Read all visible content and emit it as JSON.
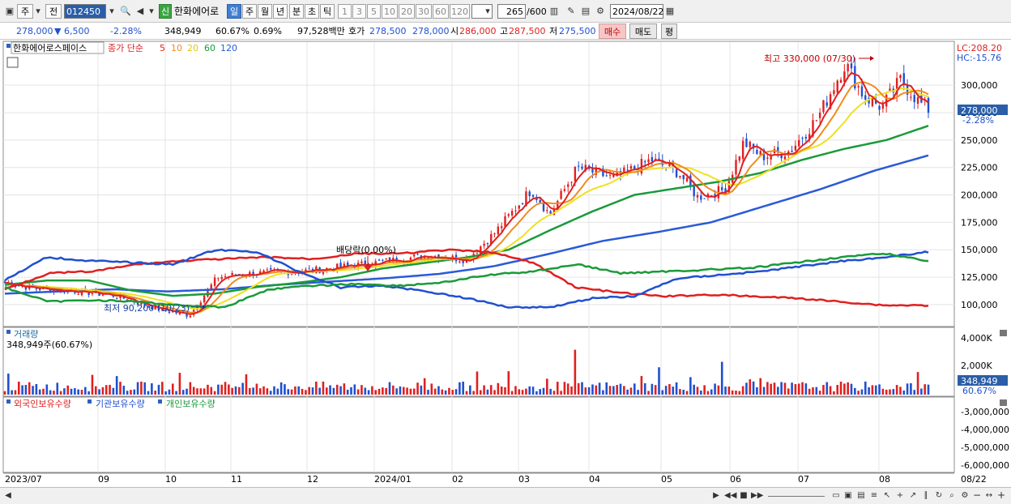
{
  "toolbar": {
    "mode_primary": "주",
    "mode_secondary": "전",
    "code": "012450",
    "shin": "신",
    "stock_name": "한화에어로",
    "periods": [
      "일",
      "주",
      "월",
      "년",
      "분",
      "초",
      "틱"
    ],
    "intervals": [
      "1",
      "3",
      "5",
      "10",
      "20",
      "30",
      "60",
      "120"
    ],
    "count": "265",
    "count_total": "/600",
    "date": "2024/08/22"
  },
  "quote": {
    "price": "278,000",
    "change": "▼ 6,500",
    "change_pct": "-2.28%",
    "volume": "348,949",
    "vol_ratio": "60.67%",
    "turnover_ratio": "0.69%",
    "amount": "97,528백만",
    "hoga_label": "호가",
    "ask": "278,500",
    "bid": "278,000",
    "open_label": "시",
    "open": "286,000",
    "high_label": "고",
    "high": "287,500",
    "low_label": "저",
    "low": "275,500",
    "buy_label": "매수",
    "sell_label": "매도",
    "eval_label": "평"
  },
  "price_panel": {
    "title": "한화에어로스페이스",
    "ma_label": "종가 단순",
    "ma_periods": [
      "5",
      "10",
      "20",
      "60",
      "120"
    ],
    "lc": "LC:208.20",
    "hc": "HC:-15.76",
    "yticks": [
      "300,000",
      "275,000",
      "250,000",
      "225,000",
      "200,000",
      "175,000",
      "150,000",
      "125,000",
      "100,000"
    ],
    "last_price": "278,000",
    "last_change": "-2.28%",
    "high_note": "최고 330,000 (07/30)",
    "low_note": "최저 90,200 (10/23)",
    "dividend_note": "배당락(0.00%)"
  },
  "volume_panel": {
    "title": "거래량",
    "current": "348,949주(60.67%)",
    "yticks": [
      "4,000K",
      "2,000K"
    ],
    "last": "348,949",
    "last_pct": "60.67%"
  },
  "holding_panel": {
    "series": [
      "외국인보유수량",
      "기관보유수량",
      "개인보유수량"
    ],
    "yticks": [
      "-3,000,000",
      "-4,000,000",
      "-5,000,000",
      "-6,000,000"
    ]
  },
  "xaxis": [
    "2023/07",
    "09",
    "10",
    "11",
    "12",
    "2024/01",
    "02",
    "03",
    "04",
    "05",
    "06",
    "07",
    "08",
    "08/22"
  ],
  "colors": {
    "up": "#e02020",
    "down": "#2050d0",
    "ma5": "#e02020",
    "ma10": "#f08c1e",
    "ma20": "#f0e020",
    "ma60": "#1a9a3a",
    "ma120": "#2a5ad8"
  },
  "chart_data": {
    "type": "candlestick",
    "price_anchors_x_pct": [
      0,
      3,
      8,
      12,
      17,
      20,
      23,
      26,
      33,
      40,
      46,
      50,
      53,
      57,
      59,
      62,
      66,
      70,
      73,
      75,
      78,
      80,
      82,
      85,
      88,
      91,
      93,
      95,
      97,
      99,
      100
    ],
    "close_anchors": [
      120000,
      115000,
      112000,
      108000,
      95000,
      90200,
      125000,
      128000,
      131000,
      138000,
      145000,
      141000,
      165000,
      205000,
      182000,
      225000,
      215000,
      232000,
      220000,
      198000,
      205000,
      248000,
      235000,
      240000,
      270000,
      320000,
      290000,
      280000,
      305000,
      284500,
      278000
    ],
    "ma60_anchors": [
      118000,
      122000,
      122000,
      113000,
      108000,
      110000,
      116000,
      120000,
      125000,
      133000,
      138000,
      143000,
      150000,
      168000,
      185000,
      200000,
      206000,
      212000,
      220000,
      232000,
      242000,
      250000,
      263000
    ],
    "ma120_anchors": [
      110000,
      112000,
      114000,
      112000,
      114000,
      118000,
      121000,
      124000,
      128000,
      135000,
      146000,
      158000,
      166000,
      175000,
      190000,
      205000,
      222000,
      236000
    ]
  }
}
